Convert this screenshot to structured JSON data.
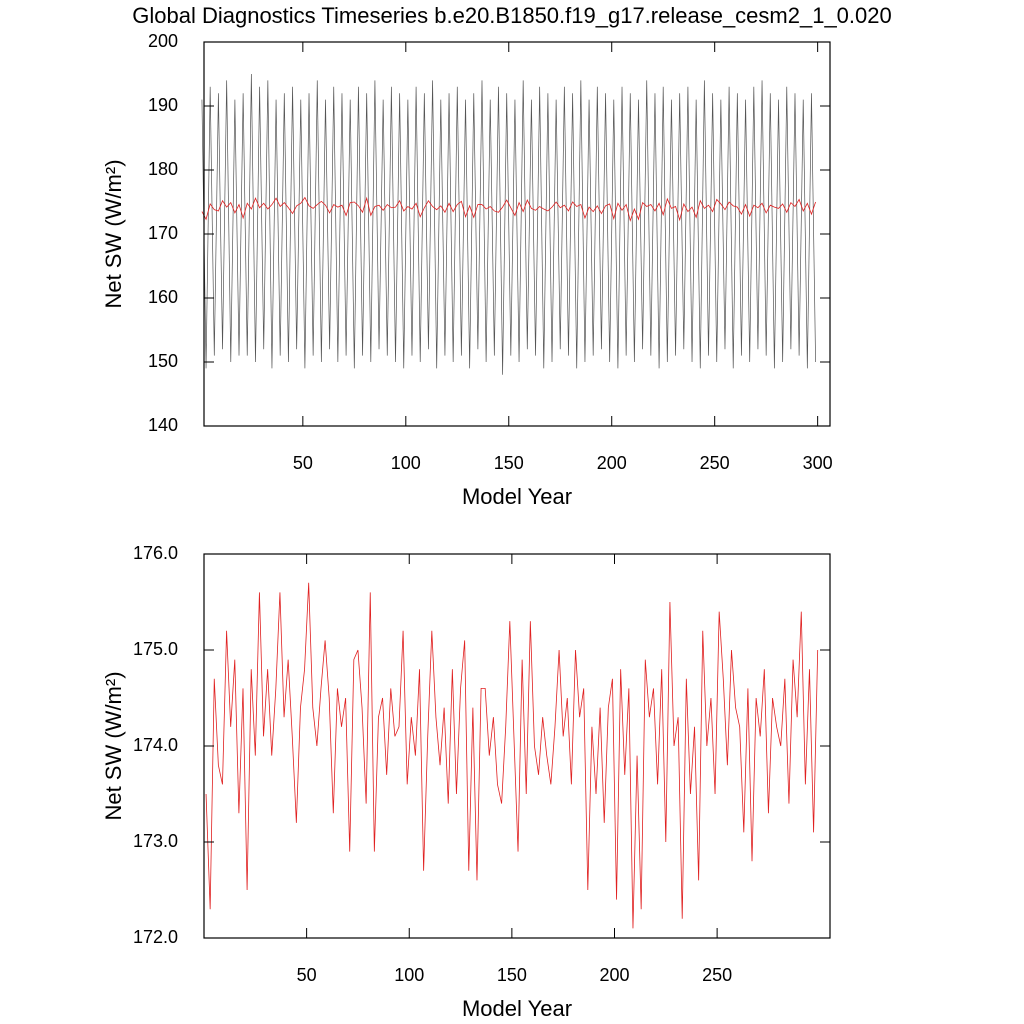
{
  "chart_data": [
    {
      "type": "line",
      "title": "Global Diagnostics Timeseries b.e20.B1850.f19_g17.release_cesm2_1_0.020",
      "xlabel": "Model Year",
      "ylabel": "Net SW (W/m²)",
      "x": [
        1,
        3,
        5,
        7,
        9,
        11,
        13,
        15,
        17,
        19,
        21,
        23,
        25,
        27,
        29,
        31,
        33,
        35,
        37,
        39,
        41,
        43,
        45,
        47,
        49,
        51,
        53,
        55,
        57,
        59,
        61,
        63,
        65,
        67,
        69,
        71,
        73,
        75,
        77,
        79,
        81,
        83,
        85,
        87,
        89,
        91,
        93,
        95,
        97,
        99,
        101,
        103,
        105,
        107,
        109,
        111,
        113,
        115,
        117,
        119,
        121,
        123,
        125,
        127,
        129,
        131,
        133,
        135,
        137,
        139,
        141,
        143,
        145,
        147,
        149,
        151,
        153,
        155,
        157,
        159,
        161,
        163,
        165,
        167,
        169,
        171,
        173,
        175,
        177,
        179,
        181,
        183,
        185,
        187,
        189,
        191,
        193,
        195,
        197,
        199,
        201,
        203,
        205,
        207,
        209,
        211,
        213,
        215,
        217,
        219,
        221,
        223,
        225,
        227,
        229,
        231,
        233,
        235,
        237,
        239,
        241,
        243,
        245,
        247,
        249,
        251,
        253,
        255,
        257,
        259,
        261,
        263,
        265,
        267,
        269,
        271,
        273,
        275,
        277,
        279,
        281,
        283,
        285,
        287,
        289,
        291,
        293,
        295,
        297,
        299
      ],
      "series": [
        {
          "color": "#555555",
          "values": [
            191,
            149,
            193,
            151,
            192,
            152,
            194,
            150,
            191,
            151,
            192,
            151,
            195,
            150,
            193,
            152,
            194,
            149,
            191,
            151,
            192,
            150,
            193,
            152,
            191,
            149,
            192,
            151,
            194,
            150,
            191,
            152,
            193,
            150,
            192,
            151,
            191,
            149,
            193,
            151,
            192,
            150,
            194,
            152,
            191,
            151,
            193,
            150,
            192,
            149,
            191,
            151,
            193,
            150,
            192,
            152,
            194,
            149,
            191,
            151,
            192,
            150,
            193,
            151,
            191,
            149,
            192,
            152,
            194,
            150,
            191,
            151,
            193,
            148,
            192,
            151,
            191,
            150,
            194,
            152,
            191,
            151,
            193,
            149,
            192,
            150,
            191,
            152,
            193,
            151,
            192,
            149,
            194,
            150,
            191,
            151,
            193,
            152,
            192,
            150,
            191,
            149,
            193,
            151,
            192,
            150,
            191,
            152,
            194,
            151,
            192,
            149,
            193,
            150,
            191,
            151,
            192,
            152,
            193,
            150,
            191,
            149,
            194,
            151,
            192,
            150,
            191,
            152,
            193,
            149,
            192,
            151,
            191,
            150,
            193,
            152,
            194,
            151,
            192,
            149,
            191,
            150,
            193,
            152,
            192,
            151,
            191,
            149,
            192,
            150
          ]
        },
        {
          "color": "#e02020",
          "values": [
            173.5,
            172.3,
            174.7,
            173.8,
            173.6,
            175.2,
            174.2,
            174.9,
            173.3,
            174.6,
            172.5,
            174.8,
            173.9,
            175.6,
            174.1,
            174.8,
            173.9,
            174.6,
            175.6,
            174.3,
            174.9,
            174.1,
            173.2,
            174.4,
            174.8,
            175.7,
            174.4,
            174.0,
            174.6,
            175.1,
            174.5,
            173.3,
            174.6,
            174.2,
            174.5,
            172.9,
            174.9,
            175.0,
            174.4,
            173.4,
            175.6,
            172.9,
            174.3,
            174.5,
            173.7,
            174.6,
            174.1,
            174.2,
            175.2,
            173.6,
            174.3,
            173.9,
            174.8,
            172.7,
            174.1,
            175.2,
            174.3,
            173.8,
            174.4,
            173.4,
            174.8,
            173.5,
            174.6,
            175.1,
            172.7,
            174.4,
            172.6,
            174.6,
            174.6,
            173.9,
            174.3,
            173.6,
            173.4,
            174.2,
            175.3,
            174.1,
            172.9,
            174.9,
            173.5,
            175.3,
            174.0,
            173.7,
            174.3,
            173.9,
            173.6,
            174.2,
            175.0,
            174.1,
            174.5,
            173.6,
            175.0,
            174.3,
            174.6,
            172.5,
            174.2,
            173.5,
            174.4,
            173.2,
            174.4,
            174.7,
            172.4,
            174.8,
            173.7,
            174.6,
            172.1,
            173.9,
            172.3,
            174.9,
            174.3,
            174.6,
            173.6,
            174.8,
            173.0,
            175.5,
            174.0,
            174.3,
            172.2,
            174.7,
            173.5,
            174.2,
            172.6,
            175.2,
            174.0,
            174.5,
            173.5,
            175.4,
            174.7,
            173.8,
            175.0,
            174.4,
            174.2,
            173.1,
            174.6,
            172.8,
            174.5,
            174.1,
            174.8,
            173.3,
            174.5,
            174.2,
            174.0,
            174.7,
            173.4,
            174.9,
            174.3,
            175.4,
            173.6,
            174.8,
            173.1,
            175.0
          ]
        }
      ],
      "xlim": [
        2,
        306
      ],
      "xticks": [
        50,
        100,
        150,
        200,
        250,
        300
      ],
      "ylim": [
        140,
        200
      ],
      "yticks": [
        140,
        150,
        160,
        170,
        180,
        190,
        200
      ]
    },
    {
      "type": "line",
      "xlabel": "Model Year",
      "ylabel": "Net SW (W/m²)",
      "x": [
        1,
        3,
        5,
        7,
        9,
        11,
        13,
        15,
        17,
        19,
        21,
        23,
        25,
        27,
        29,
        31,
        33,
        35,
        37,
        39,
        41,
        43,
        45,
        47,
        49,
        51,
        53,
        55,
        57,
        59,
        61,
        63,
        65,
        67,
        69,
        71,
        73,
        75,
        77,
        79,
        81,
        83,
        85,
        87,
        89,
        91,
        93,
        95,
        97,
        99,
        101,
        103,
        105,
        107,
        109,
        111,
        113,
        115,
        117,
        119,
        121,
        123,
        125,
        127,
        129,
        131,
        133,
        135,
        137,
        139,
        141,
        143,
        145,
        147,
        149,
        151,
        153,
        155,
        157,
        159,
        161,
        163,
        165,
        167,
        169,
        171,
        173,
        175,
        177,
        179,
        181,
        183,
        185,
        187,
        189,
        191,
        193,
        195,
        197,
        199,
        201,
        203,
        205,
        207,
        209,
        211,
        213,
        215,
        217,
        219,
        221,
        223,
        225,
        227,
        229,
        231,
        233,
        235,
        237,
        239,
        241,
        243,
        245,
        247,
        249,
        251,
        253,
        255,
        257,
        259,
        261,
        263,
        265,
        267,
        269,
        271,
        273,
        275,
        277,
        279,
        281,
        283,
        285,
        287,
        289,
        291,
        293,
        295,
        297,
        299
      ],
      "series": [
        {
          "color": "#e02020",
          "values": [
            173.5,
            172.3,
            174.7,
            173.8,
            173.6,
            175.2,
            174.2,
            174.9,
            173.3,
            174.6,
            172.5,
            174.8,
            173.9,
            175.6,
            174.1,
            174.8,
            173.9,
            174.6,
            175.6,
            174.3,
            174.9,
            174.1,
            173.2,
            174.4,
            174.8,
            175.7,
            174.4,
            174.0,
            174.6,
            175.1,
            174.5,
            173.3,
            174.6,
            174.2,
            174.5,
            172.9,
            174.9,
            175.0,
            174.4,
            173.4,
            175.6,
            172.9,
            174.3,
            174.5,
            173.7,
            174.6,
            174.1,
            174.2,
            175.2,
            173.6,
            174.3,
            173.9,
            174.8,
            172.7,
            174.1,
            175.2,
            174.3,
            173.8,
            174.4,
            173.4,
            174.8,
            173.5,
            174.6,
            175.1,
            172.7,
            174.4,
            172.6,
            174.6,
            174.6,
            173.9,
            174.3,
            173.6,
            173.4,
            174.2,
            175.3,
            174.1,
            172.9,
            174.9,
            173.5,
            175.3,
            174.0,
            173.7,
            174.3,
            173.9,
            173.6,
            174.2,
            175.0,
            174.1,
            174.5,
            173.6,
            175.0,
            174.3,
            174.6,
            172.5,
            174.2,
            173.5,
            174.4,
            173.2,
            174.4,
            174.7,
            172.4,
            174.8,
            173.7,
            174.6,
            172.1,
            173.9,
            172.3,
            174.9,
            174.3,
            174.6,
            173.6,
            174.8,
            173.0,
            175.5,
            174.0,
            174.3,
            172.2,
            174.7,
            173.5,
            174.2,
            172.6,
            175.2,
            174.0,
            174.5,
            173.5,
            175.4,
            174.7,
            173.8,
            175.0,
            174.4,
            174.2,
            173.1,
            174.6,
            172.8,
            174.5,
            174.1,
            174.8,
            173.3,
            174.5,
            174.2,
            174.0,
            174.7,
            173.4,
            174.9,
            174.3,
            175.4,
            173.6,
            174.8,
            173.1,
            175.0
          ]
        }
      ],
      "xlim": [
        0,
        305
      ],
      "xticks": [
        50,
        100,
        150,
        200,
        250
      ],
      "ylim": [
        172,
        176
      ],
      "yticks": [
        {
          "value": 172,
          "label": "172.0"
        },
        {
          "value": 173,
          "label": "173.0"
        },
        {
          "value": 174,
          "label": "174.0"
        },
        {
          "value": 175,
          "label": "175.0"
        },
        {
          "value": 176,
          "label": "176.0"
        }
      ]
    }
  ]
}
